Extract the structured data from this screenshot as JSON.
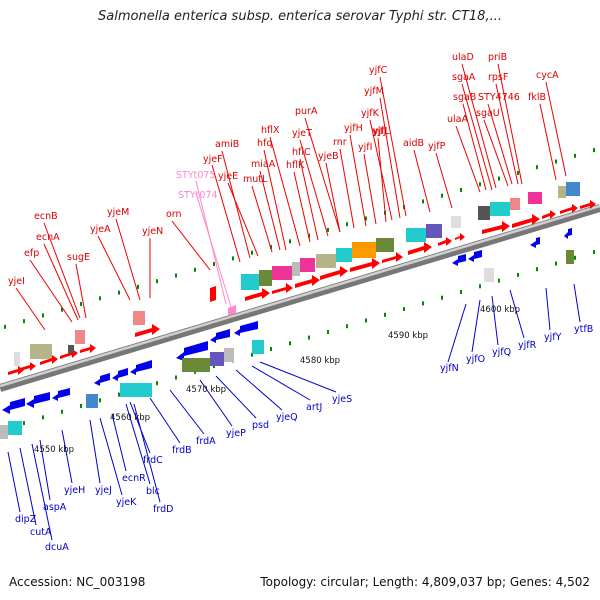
{
  "title": "Salmonella enterica subsp. enterica serovar Typhi str. CT18,...",
  "footer": {
    "accession": "Accession: NC_003198",
    "topology": "Topology: circular; Length: 4,809,037 bp; Genes: 4,502"
  },
  "colors": {
    "forward_strand": "#ff0000",
    "reverse_strand": "#0000ee",
    "pseudo": "#ff88cc",
    "tick": "#008800",
    "backbone": "#888888"
  },
  "scale_labels": [
    {
      "id": "k4550",
      "text": "4550 kbp"
    },
    {
      "id": "k4560",
      "text": "4560 kbp"
    },
    {
      "id": "k4570",
      "text": "4570 kbp"
    },
    {
      "id": "k4580",
      "text": "4580 kbp"
    },
    {
      "id": "k4590",
      "text": "4590 kbp"
    },
    {
      "id": "k4600",
      "text": "4600 kbp"
    }
  ],
  "genes_forward": [
    {
      "id": "yjeI",
      "text": "yjeI"
    },
    {
      "id": "efp",
      "text": "efp"
    },
    {
      "id": "ecnA",
      "text": "ecnA"
    },
    {
      "id": "ecnB",
      "text": "ecnB"
    },
    {
      "id": "sugE",
      "text": "sugE"
    },
    {
      "id": "yjeA",
      "text": "yjeA"
    },
    {
      "id": "yjeM",
      "text": "yjeM"
    },
    {
      "id": "yjeN",
      "text": "yjeN"
    },
    {
      "id": "orn",
      "text": "orn"
    },
    {
      "id": "STYt074",
      "text": "STYt074"
    },
    {
      "id": "STYt075",
      "text": "STYt075"
    },
    {
      "id": "yjeF",
      "text": "yjeF"
    },
    {
      "id": "amiB",
      "text": "amiB"
    },
    {
      "id": "yjeE",
      "text": "yjeE"
    },
    {
      "id": "mutL",
      "text": "mutL"
    },
    {
      "id": "miaA",
      "text": "miaA"
    },
    {
      "id": "hfq",
      "text": "hfq"
    },
    {
      "id": "hflX",
      "text": "hflX"
    },
    {
      "id": "hflK",
      "text": "hflK"
    },
    {
      "id": "hflC",
      "text": "hflC"
    },
    {
      "id": "yjeT",
      "text": "yjeT"
    },
    {
      "id": "purA",
      "text": "purA"
    },
    {
      "id": "yjeB",
      "text": "yjeB"
    },
    {
      "id": "rnr",
      "text": "rnr"
    },
    {
      "id": "yjfH",
      "text": "yjfH"
    },
    {
      "id": "yjfI",
      "text": "yjfI"
    },
    {
      "id": "yjfJ",
      "text": "yjfJ"
    },
    {
      "id": "yjfK",
      "text": "yjfK"
    },
    {
      "id": "yjfL",
      "text": "yjfL"
    },
    {
      "id": "yjfM",
      "text": "yjfM"
    },
    {
      "id": "yjfC",
      "text": "yjfC"
    },
    {
      "id": "aidB",
      "text": "aidB"
    },
    {
      "id": "yjfP",
      "text": "yjfP"
    },
    {
      "id": "ulaA",
      "text": "ulaA"
    },
    {
      "id": "sgaB",
      "text": "sgaB"
    },
    {
      "id": "sgaA",
      "text": "sgaA"
    },
    {
      "id": "ulaD",
      "text": "ulaD"
    },
    {
      "id": "sgaU",
      "text": "sgaU"
    },
    {
      "id": "STY4746",
      "text": "STY4746"
    },
    {
      "id": "rpsF",
      "text": "rpsF"
    },
    {
      "id": "priB",
      "text": "priB"
    },
    {
      "id": "fklB",
      "text": "fklB"
    },
    {
      "id": "cycA",
      "text": "cycA"
    }
  ],
  "genes_reverse": [
    {
      "id": "dipZ",
      "text": "dipZ"
    },
    {
      "id": "cutA",
      "text": "cutA"
    },
    {
      "id": "dcuA",
      "text": "dcuA"
    },
    {
      "id": "aspA",
      "text": "aspA"
    },
    {
      "id": "yjeH",
      "text": "yjeH"
    },
    {
      "id": "yjeJ",
      "text": "yjeJ"
    },
    {
      "id": "yjeK",
      "text": "yjeK"
    },
    {
      "id": "ecnR",
      "text": "ecnR"
    },
    {
      "id": "frdC",
      "text": "frdC"
    },
    {
      "id": "blc",
      "text": "blc"
    },
    {
      "id": "frdD",
      "text": "frdD"
    },
    {
      "id": "frdB",
      "text": "frdB"
    },
    {
      "id": "frdA",
      "text": "frdA"
    },
    {
      "id": "yjeP",
      "text": "yjeP"
    },
    {
      "id": "psd",
      "text": "psd"
    },
    {
      "id": "yjeQ",
      "text": "yjeQ"
    },
    {
      "id": "artJ",
      "text": "artJ"
    },
    {
      "id": "yjeS",
      "text": "yjeS"
    },
    {
      "id": "yjfN",
      "text": "yjfN"
    },
    {
      "id": "yjfO",
      "text": "yjfO"
    },
    {
      "id": "yjfQ",
      "text": "yjfQ"
    },
    {
      "id": "yjfR",
      "text": "yjfR"
    },
    {
      "id": "yjfY",
      "text": "yjfY"
    },
    {
      "id": "ytfB",
      "text": "ytfB"
    }
  ]
}
